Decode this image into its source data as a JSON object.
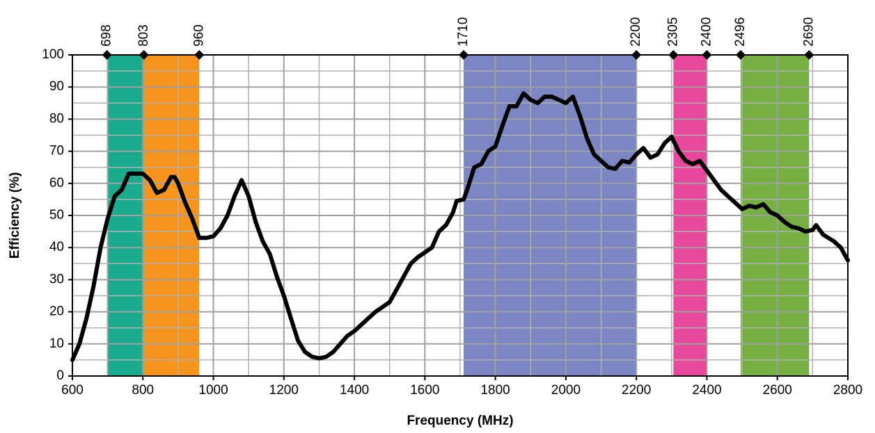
{
  "chart_data": {
    "type": "line",
    "xlabel": "Frequency (MHz)",
    "ylabel": "Efficiency (%)",
    "xlim": [
      600,
      2800
    ],
    "ylim": [
      0,
      100
    ],
    "xticks": [
      600,
      800,
      1000,
      1200,
      1400,
      1600,
      1800,
      2000,
      2200,
      2400,
      2600,
      2800
    ],
    "yticks": [
      0,
      10,
      20,
      30,
      40,
      50,
      60,
      70,
      80,
      90,
      100
    ],
    "x_minor_grid": [
      700,
      900,
      1100,
      1300,
      1500,
      1700,
      1900,
      2100,
      2300,
      2500,
      2700
    ],
    "y_minor_grid": [
      5,
      15,
      25,
      35,
      45,
      55,
      65,
      75,
      85,
      95
    ],
    "grid": true,
    "bands": [
      {
        "start": 698,
        "end": 803,
        "color": "#1aab8f"
      },
      {
        "start": 803,
        "end": 960,
        "color": "#f7941d"
      },
      {
        "start": 1710,
        "end": 2200,
        "color": "#7b86c2"
      },
      {
        "start": 2305,
        "end": 2400,
        "color": "#e8489b"
      },
      {
        "start": 2496,
        "end": 2690,
        "color": "#76b043"
      }
    ],
    "markers": [
      698,
      803,
      960,
      1710,
      2200,
      2305,
      2400,
      2496,
      2690
    ],
    "series": [
      {
        "name": "Efficiency",
        "color": "#000000",
        "x": [
          600,
          620,
          640,
          660,
          680,
          700,
          720,
          740,
          760,
          780,
          800,
          820,
          840,
          860,
          880,
          890,
          900,
          920,
          940,
          960,
          980,
          1000,
          1020,
          1040,
          1060,
          1080,
          1100,
          1120,
          1140,
          1160,
          1180,
          1200,
          1220,
          1240,
          1260,
          1280,
          1300,
          1320,
          1340,
          1360,
          1380,
          1400,
          1420,
          1440,
          1460,
          1480,
          1500,
          1520,
          1540,
          1560,
          1580,
          1600,
          1620,
          1640,
          1660,
          1680,
          1690,
          1710,
          1720,
          1740,
          1760,
          1780,
          1800,
          1820,
          1840,
          1860,
          1880,
          1900,
          1920,
          1940,
          1960,
          1980,
          2000,
          2020,
          2040,
          2060,
          2080,
          2100,
          2120,
          2140,
          2160,
          2180,
          2200,
          2220,
          2240,
          2260,
          2280,
          2300,
          2320,
          2340,
          2360,
          2380,
          2400,
          2420,
          2440,
          2460,
          2480,
          2500,
          2520,
          2540,
          2560,
          2580,
          2600,
          2620,
          2640,
          2660,
          2680,
          2700,
          2710,
          2730,
          2760,
          2780,
          2800
        ],
        "values": [
          5,
          10,
          18,
          28,
          40,
          49,
          56,
          58,
          63,
          63,
          63,
          61,
          57,
          58,
          62,
          62,
          60,
          54,
          49,
          43,
          43,
          43.5,
          46,
          50,
          56,
          61,
          56,
          48,
          42,
          38,
          31,
          25,
          18,
          11,
          7.5,
          6,
          5.5,
          6,
          7.5,
          10,
          12.5,
          14,
          16,
          18,
          20,
          21.5,
          23,
          27,
          31,
          35,
          37,
          38.5,
          40,
          45,
          47,
          51,
          54.5,
          55,
          58,
          65,
          66,
          70,
          71.5,
          78,
          84,
          84,
          88,
          86,
          85,
          87,
          87,
          86,
          85,
          87,
          81,
          74,
          69,
          67,
          65,
          64.5,
          67,
          66.5,
          69,
          71,
          68,
          69,
          72.5,
          74.5,
          70,
          67,
          66,
          67,
          64,
          61,
          58,
          56,
          54,
          52,
          53,
          52.5,
          53.5,
          51,
          50,
          48,
          46.5,
          46,
          45,
          45.5,
          47,
          44,
          42,
          40,
          36
        ]
      }
    ]
  }
}
